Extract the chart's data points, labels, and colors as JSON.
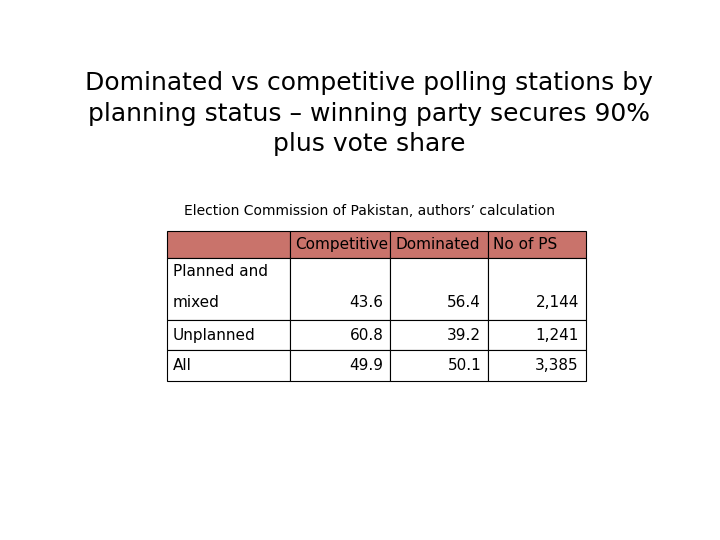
{
  "title": "Dominated vs competitive polling stations by\nplanning status – winning party secures 90%\nplus vote share",
  "subtitle": "Election Commission of Pakistan, authors’ calculation",
  "header_color": "#C9736B",
  "table_border_color": "#000000",
  "columns": [
    "",
    "Competitive",
    "Dominated",
    "No of PS"
  ],
  "rows": [
    [
      "Planned and\nmixed",
      "43.6",
      "56.4",
      "2,144"
    ],
    [
      "Unplanned",
      "60.8",
      "39.2",
      "1,241"
    ],
    [
      "All",
      "49.9",
      "50.1",
      "3,385"
    ]
  ],
  "background_color": "#ffffff",
  "title_fontsize": 18,
  "subtitle_fontsize": 10,
  "table_fontsize": 11
}
